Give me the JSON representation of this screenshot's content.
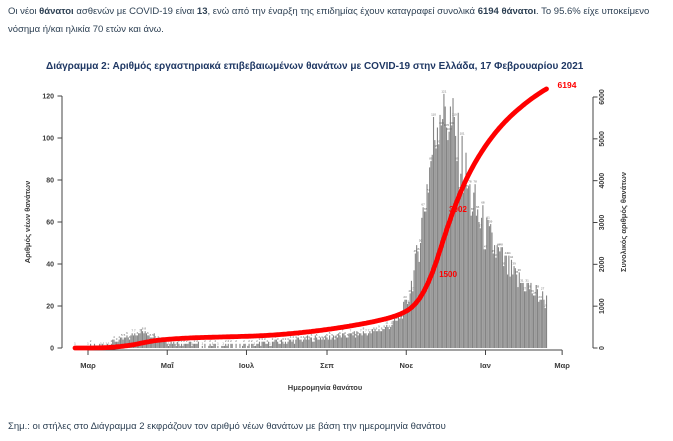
{
  "intro": {
    "segments": [
      {
        "text": "Οι νέοι ",
        "bold": false
      },
      {
        "text": "θάνατοι",
        "bold": true
      },
      {
        "text": " ασθενών με COVID-19 είναι ",
        "bold": false
      },
      {
        "text": "13",
        "bold": true
      },
      {
        "text": ", ενώ από την έναρξη της επιδημίας έχουν καταγραφεί συνολικά ",
        "bold": false
      },
      {
        "text": "6194 θάνατοι",
        "bold": true
      },
      {
        "text": ". Το 95.6% είχε υποκείμενο νόσημα ή/και ηλικία 70 ετών και άνω.",
        "bold": false
      }
    ]
  },
  "figure": {
    "title": "Διάγραμμα 2: Αριθμός εργαστηριακά επιβεβαιωμένων θανάτων με COVID-19 στην Ελλάδα, 17 Φεβρουαρίου 2021"
  },
  "footnote": "Σημ.: οι στήλες στο Διάγραμμα 2 εκφράζουν τον αριθμό νέων θανάτων με βάση την ημερομηνία θανάτου",
  "colors": {
    "accent_red": "#ff0000",
    "title_navy": "#1f3864",
    "body_text": "#2e4154",
    "bar_gray": "#848484",
    "axis_text": "#3a3a3a"
  },
  "chart_data": {
    "type": "bar+line",
    "title": "Αριθμός εργαστηριακά επιβεβαιωμένων θανάτων με COVID-19 στην Ελλάδα, 17 Φεβρουαρίου 2021",
    "xlabel": "Ημερομηνία θανάτου",
    "ylabel_left": "Αριθμός νέων θανάτων",
    "ylabel_right": "Συνολικός αριθμός θανάτων",
    "x_tick_labels": [
      "Μαρ",
      "Μαΐ",
      "Ιουλ",
      "Σεπ",
      "Νοε",
      "Ιαν",
      "Μαρ"
    ],
    "x_tick_days": [
      0,
      61,
      122,
      184,
      245,
      306,
      365
    ],
    "y_left_ticks": [
      0,
      20,
      40,
      60,
      80,
      100,
      120
    ],
    "y_right_ticks": [
      0,
      1000,
      2000,
      3000,
      4000,
      5000,
      6000
    ],
    "ylim_left": [
      0,
      120
    ],
    "ylim_right": [
      0,
      6200
    ],
    "grid": false,
    "legend": "none",
    "bar_color": "#848484",
    "bar_label_color": "#6b6b6b",
    "line_color": "#ff0000",
    "cumulative_total": 6194,
    "new_deaths_today": 13,
    "annotations": [
      "1500",
      "3002",
      "6194"
    ],
    "daily_deaths_anchor_points": [
      [
        -10,
        0
      ],
      [
        0,
        0
      ],
      [
        10,
        1
      ],
      [
        20,
        3
      ],
      [
        31,
        5
      ],
      [
        40,
        8
      ],
      [
        50,
        6
      ],
      [
        60,
        3
      ],
      [
        75,
        2
      ],
      [
        90,
        1
      ],
      [
        106,
        1
      ],
      [
        120,
        1
      ],
      [
        136,
        2
      ],
      [
        150,
        3
      ],
      [
        167,
        4
      ],
      [
        184,
        5
      ],
      [
        198,
        6
      ],
      [
        214,
        7
      ],
      [
        228,
        9
      ],
      [
        238,
        13
      ],
      [
        245,
        20
      ],
      [
        252,
        38
      ],
      [
        259,
        68
      ],
      [
        266,
        98
      ],
      [
        271,
        118
      ],
      [
        276,
        112
      ],
      [
        280,
        105
      ],
      [
        284,
        96
      ],
      [
        289,
        86
      ],
      [
        294,
        72
      ],
      [
        302,
        60
      ],
      [
        310,
        50
      ],
      [
        317,
        43
      ],
      [
        325,
        36
      ],
      [
        331,
        32
      ],
      [
        337,
        30
      ],
      [
        344,
        26
      ],
      [
        353,
        22
      ]
    ]
  }
}
